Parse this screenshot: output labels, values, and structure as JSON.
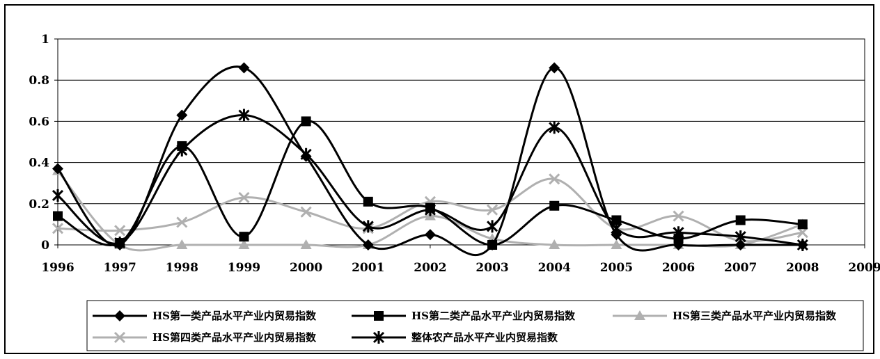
{
  "chart_data": {
    "type": "line",
    "x": [
      1996,
      1997,
      1998,
      1999,
      2000,
      2001,
      2002,
      2003,
      2004,
      2005,
      2006,
      2007,
      2008
    ],
    "x_ticks": [
      "1996",
      "1997",
      "1998",
      "1999",
      "2000",
      "2001",
      "2002",
      "2003",
      "2004",
      "2005",
      "2006",
      "2007",
      "2008",
      "2009"
    ],
    "xlim": [
      1996,
      2009
    ],
    "y_ticks": [
      "0",
      "0.2",
      "0.4",
      "0.6",
      "0.8",
      "1"
    ],
    "ylim": [
      0,
      1
    ],
    "grid": "horizontal",
    "legend_position": "bottom",
    "series": [
      {
        "name": "HS第一类产品水平产业内贸易指数",
        "color": "#000000",
        "marker": "diamond",
        "values": [
          0.37,
          0.0,
          0.63,
          0.86,
          0.43,
          0.0,
          0.05,
          0.0,
          0.86,
          0.05,
          0.0,
          0.0,
          0.0
        ]
      },
      {
        "name": "HS第二类产品水平产业内贸易指数",
        "color": "#000000",
        "marker": "square",
        "values": [
          0.14,
          0.01,
          0.48,
          0.04,
          0.6,
          0.21,
          0.18,
          0.0,
          0.19,
          0.12,
          0.03,
          0.12,
          0.1
        ]
      },
      {
        "name": "HS第三类产品水平产业内贸易指数",
        "color": "#b0b0b0",
        "marker": "triangle",
        "values": [
          0.36,
          0.0,
          0.0,
          0.0,
          0.0,
          0.0,
          0.14,
          0.03,
          0.0,
          0.0,
          0.0,
          0.0,
          0.1
        ]
      },
      {
        "name": "HS第四类产品水平产业内贸易指数",
        "color": "#b0b0b0",
        "marker": "x",
        "values": [
          0.08,
          0.07,
          0.11,
          0.23,
          0.16,
          0.08,
          0.21,
          0.17,
          0.32,
          0.08,
          0.14,
          0.02,
          0.06
        ]
      },
      {
        "name": "整体农产品水平产业内贸易指数",
        "color": "#000000",
        "marker": "asterisk",
        "values": [
          0.24,
          0.01,
          0.46,
          0.63,
          0.44,
          0.09,
          0.17,
          0.09,
          0.57,
          0.08,
          0.06,
          0.04,
          0.0
        ]
      }
    ]
  }
}
